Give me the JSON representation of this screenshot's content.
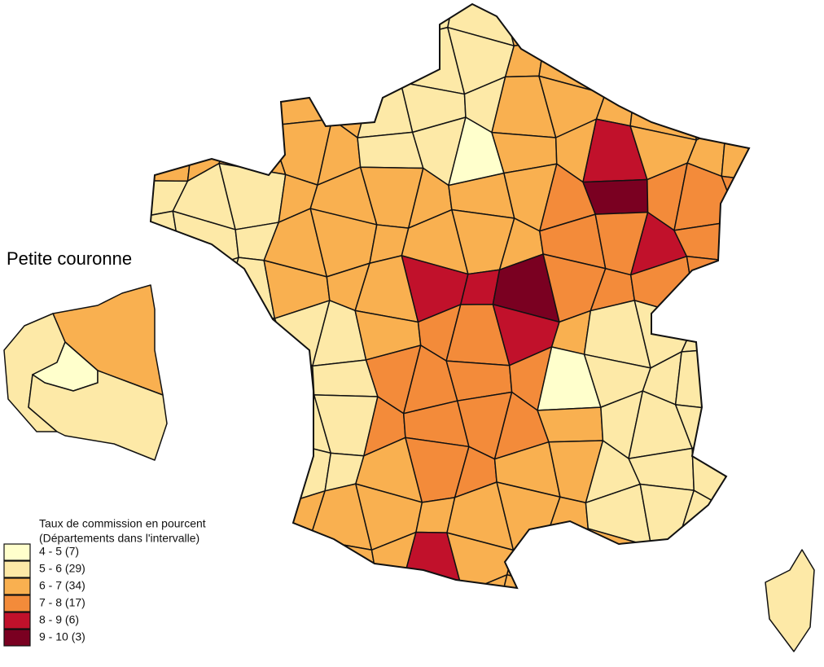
{
  "inset_title": "Petite couronne",
  "legend": {
    "title": [
      "Taux de commission en pourcent",
      "(Départements dans l'intervalle)"
    ],
    "items": [
      {
        "label": "4 - 5 (7)",
        "color": "#ffffcc"
      },
      {
        "label": "5 - 6 (29)",
        "color": "#fde9a7"
      },
      {
        "label": "6 - 7 (34)",
        "color": "#f9b050"
      },
      {
        "label": "7 - 8 (17)",
        "color": "#f38b3a"
      },
      {
        "label": "8 - 9 (6)",
        "color": "#c1112b"
      },
      {
        "label": "9 - 10 (3)",
        "color": "#7a0021"
      }
    ]
  }
}
